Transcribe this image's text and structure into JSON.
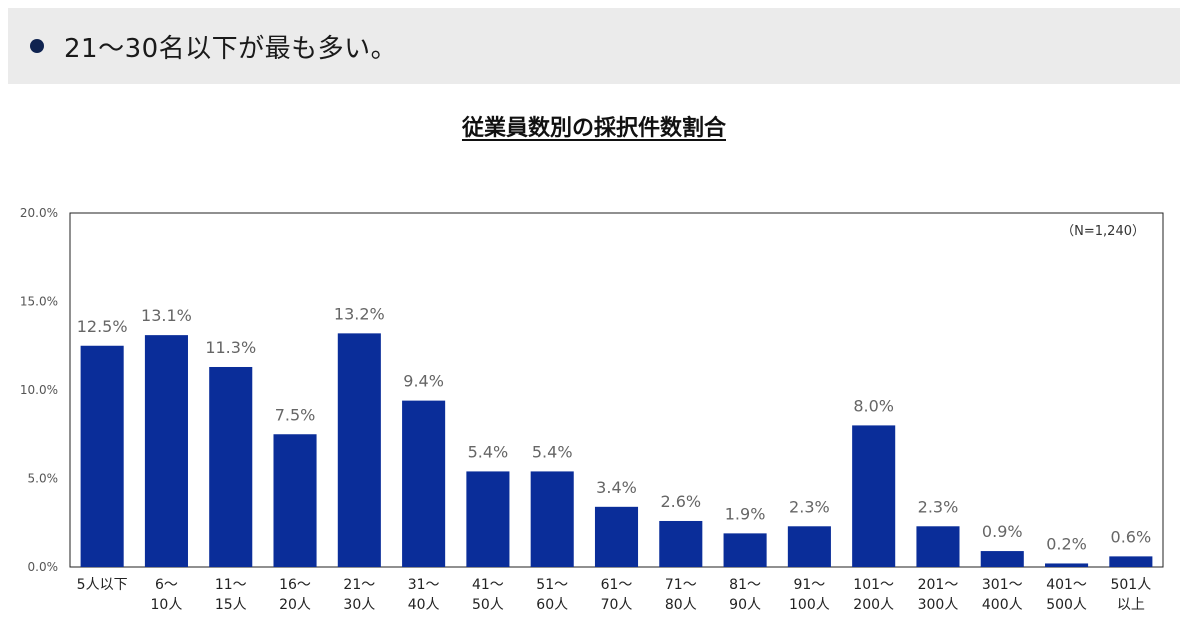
{
  "banner": {
    "text": "21〜30名以下が最も多い。"
  },
  "chart_data": {
    "type": "bar",
    "title": "従業員数別の採択件数割合",
    "note": "（N=1,240）",
    "categories": [
      [
        "5人以下"
      ],
      [
        "6〜",
        "10人"
      ],
      [
        "11〜",
        "15人"
      ],
      [
        "16〜",
        "20人"
      ],
      [
        "21〜",
        "30人"
      ],
      [
        "31〜",
        "40人"
      ],
      [
        "41〜",
        "50人"
      ],
      [
        "51〜",
        "60人"
      ],
      [
        "61〜",
        "70人"
      ],
      [
        "71〜",
        "80人"
      ],
      [
        "81〜",
        "90人"
      ],
      [
        "91〜",
        "100人"
      ],
      [
        "101〜",
        "200人"
      ],
      [
        "201〜",
        "300人"
      ],
      [
        "301〜",
        "400人"
      ],
      [
        "401〜",
        "500人"
      ],
      [
        "501人",
        "以上"
      ]
    ],
    "values": [
      12.5,
      13.1,
      11.3,
      7.5,
      13.2,
      9.4,
      5.4,
      5.4,
      3.4,
      2.6,
      1.9,
      2.3,
      8.0,
      2.3,
      0.9,
      0.2,
      0.6
    ],
    "value_labels": [
      "12.5%",
      "13.1%",
      "11.3%",
      "7.5%",
      "13.2%",
      "9.4%",
      "5.4%",
      "5.4%",
      "3.4%",
      "2.6%",
      "1.9%",
      "2.3%",
      "8.0%",
      "2.3%",
      "0.9%",
      "0.2%",
      "0.6%"
    ],
    "y_ticks": [
      0,
      5,
      10,
      15,
      20
    ],
    "y_tick_labels": [
      "0.0%",
      "5.0%",
      "10.0%",
      "15.0%",
      "20.0%"
    ],
    "ylim": [
      0,
      20
    ],
    "grid": false,
    "bar_color": "#0a2d99"
  }
}
